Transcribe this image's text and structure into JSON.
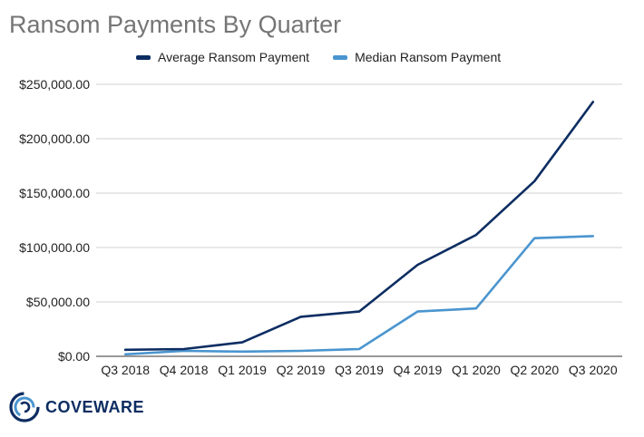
{
  "chart_data": {
    "type": "line",
    "title": "Ransom Payments By Quarter",
    "xlabel": "",
    "ylabel": "",
    "categories": [
      "Q3 2018",
      "Q4 2018",
      "Q1 2019",
      "Q2 2019",
      "Q3 2019",
      "Q4 2019",
      "Q1 2020",
      "Q2 2020",
      "Q3 2020"
    ],
    "ylim": [
      0,
      250000
    ],
    "yticks": [
      0,
      50000,
      100000,
      150000,
      200000,
      250000
    ],
    "ytick_labels": [
      "$0.00",
      "$50,000.00",
      "$100,000.00",
      "$150,000.00",
      "$200,000.00",
      "$250,000.00"
    ],
    "grid": true,
    "legend_position": "top",
    "series": [
      {
        "name": "Average Ransom Payment",
        "color": "#0d2d62",
        "values": [
          6000,
          6700,
          12800,
          36300,
          41200,
          84100,
          111600,
          161000,
          233800
        ]
      },
      {
        "name": "Median Ransom Payment",
        "color": "#4a95cf",
        "values": [
          1800,
          5000,
          4300,
          5000,
          6700,
          41200,
          44000,
          108600,
          110500
        ]
      }
    ]
  },
  "branding": {
    "logo_text": "COVEWARE",
    "logo_icon": "coveware-rings-icon",
    "logo_color": "#0d2d62",
    "logo_accent_color": "#4a95cf"
  }
}
